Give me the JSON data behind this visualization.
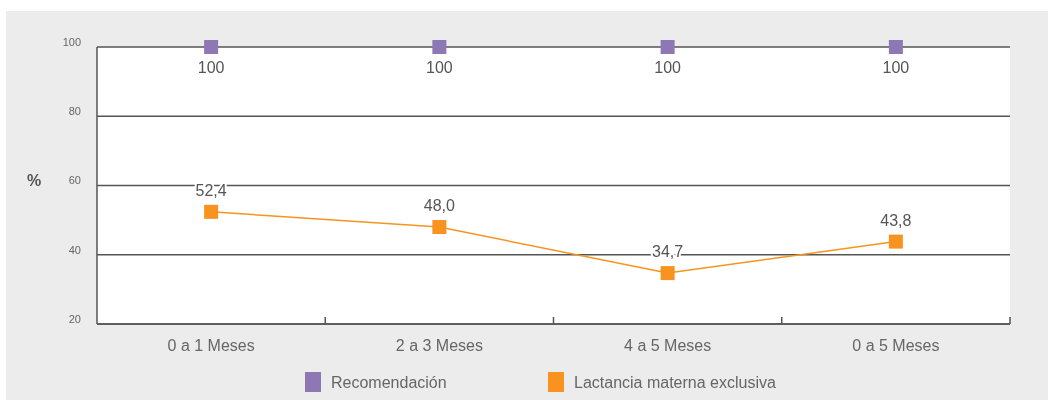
{
  "chart_data": {
    "type": "line",
    "ylabel": "%",
    "categories": [
      "0 a 1 Meses",
      "2 a 3 Meses",
      "4 a 5 Meses",
      "0 a 5 Meses"
    ],
    "series": [
      {
        "name": "Recomendación",
        "type": "scatter",
        "color": "#8e77b5",
        "values": [
          100,
          100,
          100,
          100
        ],
        "value_labels": [
          "100",
          "100",
          "100",
          "100"
        ]
      },
      {
        "name": "Lactancia materna exclusiva",
        "color": "#f7931e",
        "values": [
          52.4,
          48.0,
          34.7,
          43.8
        ],
        "value_labels": [
          "52,4",
          "48,0",
          "34,7",
          "43,8"
        ]
      }
    ],
    "ylim": [
      20,
      100
    ],
    "yticks": [
      20,
      40,
      60,
      80,
      100
    ],
    "grid": "y",
    "marker": "square",
    "legend": "bottom"
  }
}
